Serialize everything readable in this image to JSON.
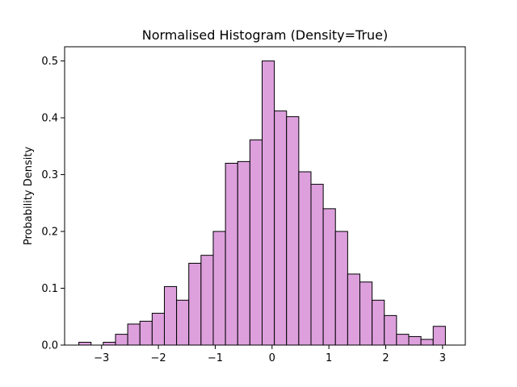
{
  "chart_data": {
    "type": "bar",
    "title": "Normalised Histogram (Density=True)",
    "xlabel": "",
    "ylabel": "Probability Density",
    "xlim": [
      -3.65,
      3.4
    ],
    "ylim": [
      0,
      0.525
    ],
    "grid": false,
    "bar_color": "#DDA0DD",
    "edge_color": "#000000",
    "bin_edges": [
      -3.4,
      -3.185,
      -2.97,
      -2.755,
      -2.54,
      -2.325,
      -2.11,
      -1.895,
      -1.68,
      -1.465,
      -1.25,
      -1.035,
      -0.82,
      -0.605,
      -0.39,
      -0.175,
      0.04,
      0.255,
      0.47,
      0.685,
      0.9,
      1.115,
      1.33,
      1.545,
      1.76,
      1.975,
      2.19,
      2.405,
      2.62,
      2.835,
      3.05
    ],
    "values": [
      0.005,
      0.0,
      0.005,
      0.019,
      0.037,
      0.042,
      0.056,
      0.103,
      0.079,
      0.144,
      0.158,
      0.2,
      0.32,
      0.323,
      0.361,
      0.5,
      0.412,
      0.402,
      0.305,
      0.283,
      0.24,
      0.2,
      0.125,
      0.111,
      0.079,
      0.052,
      0.019,
      0.015,
      0.01,
      0.033
    ],
    "xticks": [
      -3,
      -2,
      -1,
      0,
      1,
      2,
      3
    ],
    "xtick_labels": [
      "−3",
      "−2",
      "−1",
      "0",
      "1",
      "2",
      "3"
    ],
    "yticks": [
      0.0,
      0.1,
      0.2,
      0.3,
      0.4,
      0.5
    ],
    "ytick_labels": [
      "0.0",
      "0.1",
      "0.2",
      "0.3",
      "0.4",
      "0.5"
    ]
  }
}
